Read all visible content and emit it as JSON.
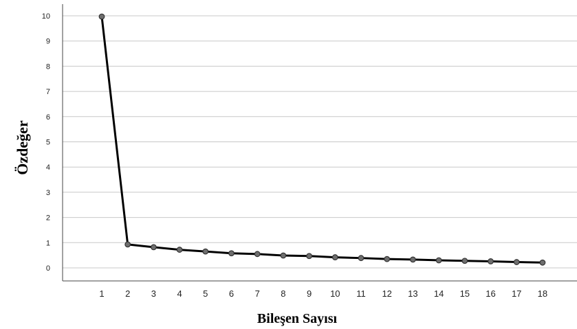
{
  "chart_data": {
    "type": "line",
    "title": "",
    "xlabel": "Bileşen Sayısı",
    "ylabel": "Özdeğer",
    "x": [
      1,
      2,
      3,
      4,
      5,
      6,
      7,
      8,
      9,
      10,
      11,
      12,
      13,
      14,
      15,
      16,
      17,
      18
    ],
    "series": [
      {
        "values": [
          9.97,
          0.93,
          0.82,
          0.72,
          0.65,
          0.58,
          0.55,
          0.49,
          0.47,
          0.42,
          0.39,
          0.35,
          0.33,
          0.3,
          0.28,
          0.26,
          0.23,
          0.21
        ],
        "color": "#000000",
        "marker_color": "#6e6e6e"
      }
    ],
    "ylim": [
      0,
      10
    ],
    "yticks": [
      0,
      1,
      2,
      3,
      4,
      5,
      6,
      7,
      8,
      9,
      10
    ],
    "xticks": [
      1,
      2,
      3,
      4,
      5,
      6,
      7,
      8,
      9,
      10,
      11,
      12,
      13,
      14,
      15,
      16,
      17,
      18
    ],
    "grid": "horizontal",
    "legend": "none"
  }
}
